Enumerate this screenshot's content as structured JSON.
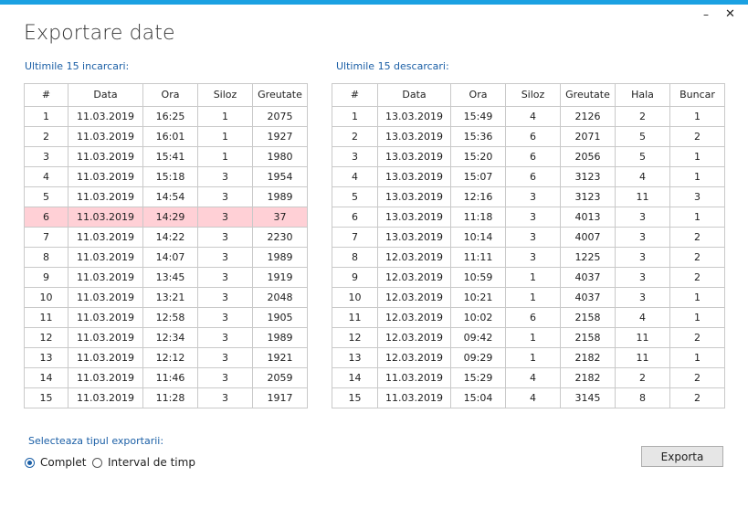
{
  "window": {
    "title": "Exportare date",
    "minimize": "–",
    "close": "✕"
  },
  "left": {
    "label": "Ultimile 15 incarcari:",
    "columns": [
      "#",
      "Data",
      "Ora",
      "Siloz",
      "Greutate"
    ],
    "rows": [
      [
        "1",
        "11.03.2019",
        "16:25",
        "1",
        "2075"
      ],
      [
        "2",
        "11.03.2019",
        "16:01",
        "1",
        "1927"
      ],
      [
        "3",
        "11.03.2019",
        "15:41",
        "1",
        "1980"
      ],
      [
        "4",
        "11.03.2019",
        "15:18",
        "3",
        "1954"
      ],
      [
        "5",
        "11.03.2019",
        "14:54",
        "3",
        "1989"
      ],
      [
        "6",
        "11.03.2019",
        "14:29",
        "3",
        "37"
      ],
      [
        "7",
        "11.03.2019",
        "14:22",
        "3",
        "2230"
      ],
      [
        "8",
        "11.03.2019",
        "14:07",
        "3",
        "1989"
      ],
      [
        "9",
        "11.03.2019",
        "13:45",
        "3",
        "1919"
      ],
      [
        "10",
        "11.03.2019",
        "13:21",
        "3",
        "2048"
      ],
      [
        "11",
        "11.03.2019",
        "12:58",
        "3",
        "1905"
      ],
      [
        "12",
        "11.03.2019",
        "12:34",
        "3",
        "1989"
      ],
      [
        "13",
        "11.03.2019",
        "12:12",
        "3",
        "1921"
      ],
      [
        "14",
        "11.03.2019",
        "11:46",
        "3",
        "2059"
      ],
      [
        "15",
        "11.03.2019",
        "11:28",
        "3",
        "1917"
      ]
    ],
    "highlighted_row": 5,
    "highlight_color": "#ffd0d6"
  },
  "right": {
    "label": "Ultimile 15 descarcari:",
    "columns": [
      "#",
      "Data",
      "Ora",
      "Siloz",
      "Greutate",
      "Hala",
      "Buncar"
    ],
    "rows": [
      [
        "1",
        "13.03.2019",
        "15:49",
        "4",
        "2126",
        "2",
        "1"
      ],
      [
        "2",
        "13.03.2019",
        "15:36",
        "6",
        "2071",
        "5",
        "2"
      ],
      [
        "3",
        "13.03.2019",
        "15:20",
        "6",
        "2056",
        "5",
        "1"
      ],
      [
        "4",
        "13.03.2019",
        "15:07",
        "6",
        "3123",
        "4",
        "1"
      ],
      [
        "5",
        "13.03.2019",
        "12:16",
        "3",
        "3123",
        "11",
        "3"
      ],
      [
        "6",
        "13.03.2019",
        "11:18",
        "3",
        "4013",
        "3",
        "1"
      ],
      [
        "7",
        "13.03.2019",
        "10:14",
        "3",
        "4007",
        "3",
        "2"
      ],
      [
        "8",
        "12.03.2019",
        "11:11",
        "3",
        "1225",
        "3",
        "2"
      ],
      [
        "9",
        "12.03.2019",
        "10:59",
        "1",
        "4037",
        "3",
        "2"
      ],
      [
        "10",
        "12.03.2019",
        "10:21",
        "1",
        "4037",
        "3",
        "1"
      ],
      [
        "11",
        "12.03.2019",
        "10:02",
        "6",
        "2158",
        "4",
        "1"
      ],
      [
        "12",
        "12.03.2019",
        "09:42",
        "1",
        "2158",
        "11",
        "2"
      ],
      [
        "13",
        "12.03.2019",
        "09:29",
        "1",
        "2182",
        "11",
        "1"
      ],
      [
        "14",
        "11.03.2019",
        "15:29",
        "4",
        "2182",
        "2",
        "2"
      ],
      [
        "15",
        "11.03.2019",
        "15:04",
        "4",
        "3145",
        "8",
        "2"
      ]
    ]
  },
  "export": {
    "label": "Selecteaza tipul exportarii:",
    "options": [
      {
        "label": "Complet",
        "selected": true
      },
      {
        "label": "Interval de timp",
        "selected": false
      }
    ],
    "button": "Exporta"
  },
  "colors": {
    "accent_bar": "#1ba1e2",
    "label_blue": "#1b5fa6"
  }
}
